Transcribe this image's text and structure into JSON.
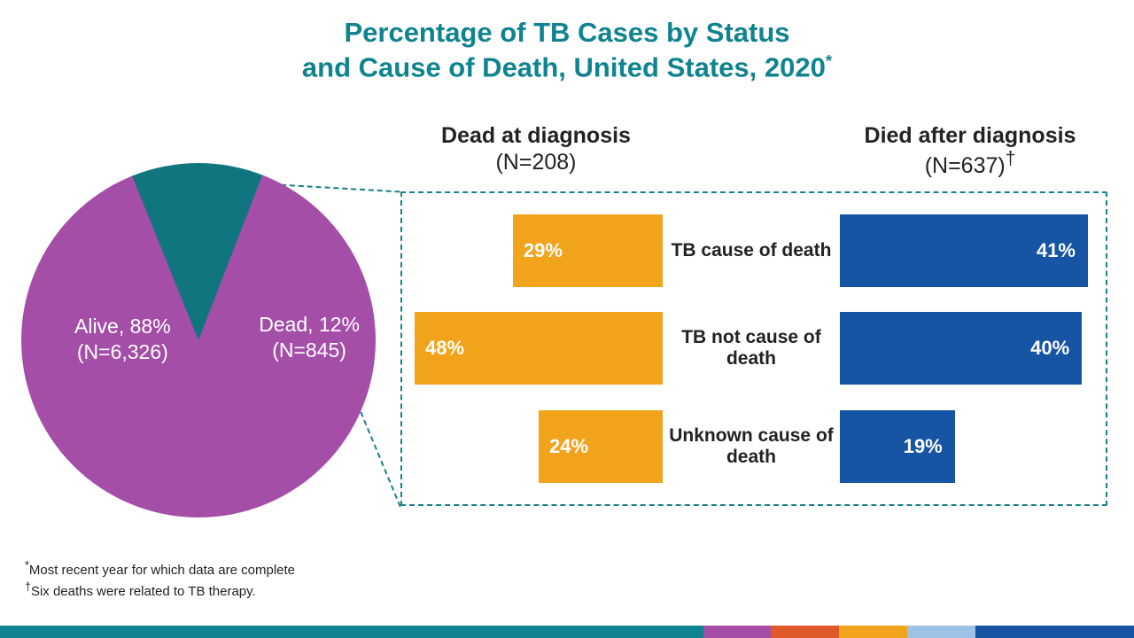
{
  "title": {
    "line1": "Percentage of TB Cases by Status",
    "line2": "and Cause of Death, United States, 2020",
    "asterisk": "*",
    "color": "#0f8390",
    "fontsize": 31
  },
  "pie": {
    "slices": [
      {
        "label_l1": "Alive, 88%",
        "label_l2": "(N=6,326)",
        "pct": 88,
        "color": "#a54ea8"
      },
      {
        "label_l1": "Dead, 12%",
        "label_l2": "(N=845)",
        "pct": 12,
        "color": "#11757f"
      }
    ],
    "start_angle_deg": -22
  },
  "headers": {
    "left": {
      "bold": "Dead at diagnosis",
      "sub": "(N=208)"
    },
    "right": {
      "bold": "Died after diagnosis",
      "sub": "(N=637)",
      "dagger": "†"
    }
  },
  "panel": {
    "border_color": "#178089",
    "left_bar_color": "#f1a31c",
    "right_bar_color": "#1655a3",
    "left_max_pct": 48,
    "right_max_pct": 41,
    "rows": [
      {
        "left_pct": 29,
        "left_label": "29%",
        "mid": "TB cause of death",
        "right_pct": 41,
        "right_label": "41%"
      },
      {
        "left_pct": 48,
        "left_label": "48%",
        "mid": "TB not cause of death",
        "right_pct": 40,
        "right_label": "40%"
      },
      {
        "left_pct": 24,
        "left_label": "24%",
        "mid": "Unknown cause of death",
        "right_pct": 19,
        "right_label": "19%"
      }
    ]
  },
  "footnotes": {
    "f1": "Most recent year for which data are complete",
    "f1_mark": "*",
    "f2": "Six deaths were related to TB therapy.",
    "f2_mark": "†"
  },
  "footer_colors": [
    {
      "color": "#0f8390",
      "flex": 62
    },
    {
      "color": "#a54ea8",
      "flex": 6
    },
    {
      "color": "#e0592a",
      "flex": 6
    },
    {
      "color": "#f1a31c",
      "flex": 6
    },
    {
      "color": "#9cc3e6",
      "flex": 6
    },
    {
      "color": "#1655a3",
      "flex": 14
    }
  ]
}
